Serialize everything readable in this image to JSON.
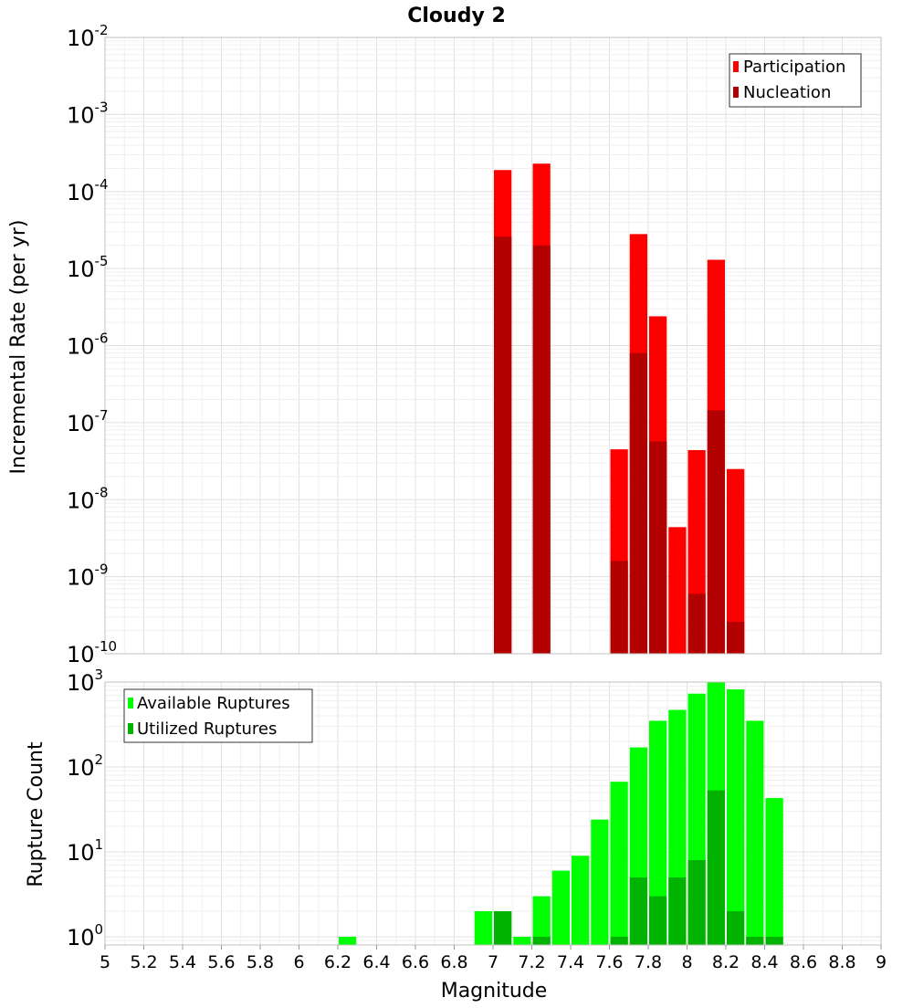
{
  "chart_data": [
    {
      "type": "bar",
      "title": "Cloudy 2",
      "xlabel": "",
      "ylabel": "Incremental Rate (per yr)",
      "scale": "log",
      "xlim": [
        5,
        9
      ],
      "ylim_exp": [
        -10,
        -2
      ],
      "y_ticks": [
        {
          "base": "10",
          "exp": "-2"
        },
        {
          "base": "10",
          "exp": "-3"
        },
        {
          "base": "10",
          "exp": "-4"
        },
        {
          "base": "10",
          "exp": "-5"
        },
        {
          "base": "10",
          "exp": "-6"
        },
        {
          "base": "10",
          "exp": "-7"
        },
        {
          "base": "10",
          "exp": "-8"
        },
        {
          "base": "10",
          "exp": "-9"
        },
        {
          "base": "10",
          "exp": "-10"
        }
      ],
      "legend_position": "top-right",
      "grid": true,
      "bin_width": 0.1,
      "series": [
        {
          "name": "Participation",
          "color": "#ff0000",
          "points": [
            {
              "x": 7.05,
              "y": 0.00019
            },
            {
              "x": 7.25,
              "y": 0.00023
            },
            {
              "x": 7.65,
              "y": 4.5e-08
            },
            {
              "x": 7.75,
              "y": 2.8e-05
            },
            {
              "x": 7.85,
              "y": 2.4e-06
            },
            {
              "x": 7.95,
              "y": 4.4e-09
            },
            {
              "x": 8.05,
              "y": 4.4e-08
            },
            {
              "x": 8.15,
              "y": 1.3e-05
            },
            {
              "x": 8.25,
              "y": 2.5e-08
            }
          ]
        },
        {
          "name": "Nucleation",
          "color": "#b30000",
          "points": [
            {
              "x": 7.05,
              "y": 2.6e-05
            },
            {
              "x": 7.25,
              "y": 2e-05
            },
            {
              "x": 7.65,
              "y": 1.6e-09
            },
            {
              "x": 7.75,
              "y": 8e-07
            },
            {
              "x": 7.85,
              "y": 5.7e-08
            },
            {
              "x": 7.95,
              "y": 1e-10
            },
            {
              "x": 8.05,
              "y": 6e-10
            },
            {
              "x": 8.15,
              "y": 1.45e-07
            },
            {
              "x": 8.25,
              "y": 2.6e-10
            }
          ]
        }
      ]
    },
    {
      "type": "bar",
      "title": "",
      "xlabel": "Magnitude",
      "ylabel": "Rupture Count",
      "scale": "log",
      "xlim": [
        5,
        9
      ],
      "ylim": [
        0.8,
        1000
      ],
      "y_ticks": [
        {
          "base": "10",
          "exp": "3"
        },
        {
          "base": "10",
          "exp": "2"
        },
        {
          "base": "10",
          "exp": "1"
        },
        {
          "base": "10",
          "exp": "0"
        }
      ],
      "x_ticks": [
        "5",
        "5.2",
        "5.4",
        "5.6",
        "5.8",
        "6",
        "6.2",
        "6.4",
        "6.6",
        "6.8",
        "7",
        "7.2",
        "7.4",
        "7.6",
        "7.8",
        "8",
        "8.2",
        "8.4",
        "8.6",
        "8.8",
        "9"
      ],
      "legend_position": "top-left",
      "grid": true,
      "bin_width": 0.1,
      "series": [
        {
          "name": "Available Ruptures",
          "color": "#00ff00",
          "points": [
            {
              "x": 6.25,
              "y": 1
            },
            {
              "x": 6.95,
              "y": 2
            },
            {
              "x": 7.05,
              "y": 2
            },
            {
              "x": 7.15,
              "y": 1
            },
            {
              "x": 7.25,
              "y": 3
            },
            {
              "x": 7.35,
              "y": 6
            },
            {
              "x": 7.45,
              "y": 9
            },
            {
              "x": 7.55,
              "y": 24
            },
            {
              "x": 7.65,
              "y": 67
            },
            {
              "x": 7.75,
              "y": 170
            },
            {
              "x": 7.85,
              "y": 350
            },
            {
              "x": 7.95,
              "y": 470
            },
            {
              "x": 8.05,
              "y": 730
            },
            {
              "x": 8.15,
              "y": 1000
            },
            {
              "x": 8.25,
              "y": 820
            },
            {
              "x": 8.35,
              "y": 350
            },
            {
              "x": 8.45,
              "y": 43
            }
          ]
        },
        {
          "name": "Utilized Ruptures",
          "color": "#00b300",
          "points": [
            {
              "x": 7.05,
              "y": 2
            },
            {
              "x": 7.25,
              "y": 1
            },
            {
              "x": 7.65,
              "y": 1
            },
            {
              "x": 7.75,
              "y": 5
            },
            {
              "x": 7.85,
              "y": 3
            },
            {
              "x": 7.95,
              "y": 5
            },
            {
              "x": 8.05,
              "y": 8
            },
            {
              "x": 8.15,
              "y": 53
            },
            {
              "x": 8.25,
              "y": 2
            },
            {
              "x": 8.35,
              "y": 1
            },
            {
              "x": 8.45,
              "y": 1
            }
          ]
        }
      ]
    }
  ]
}
